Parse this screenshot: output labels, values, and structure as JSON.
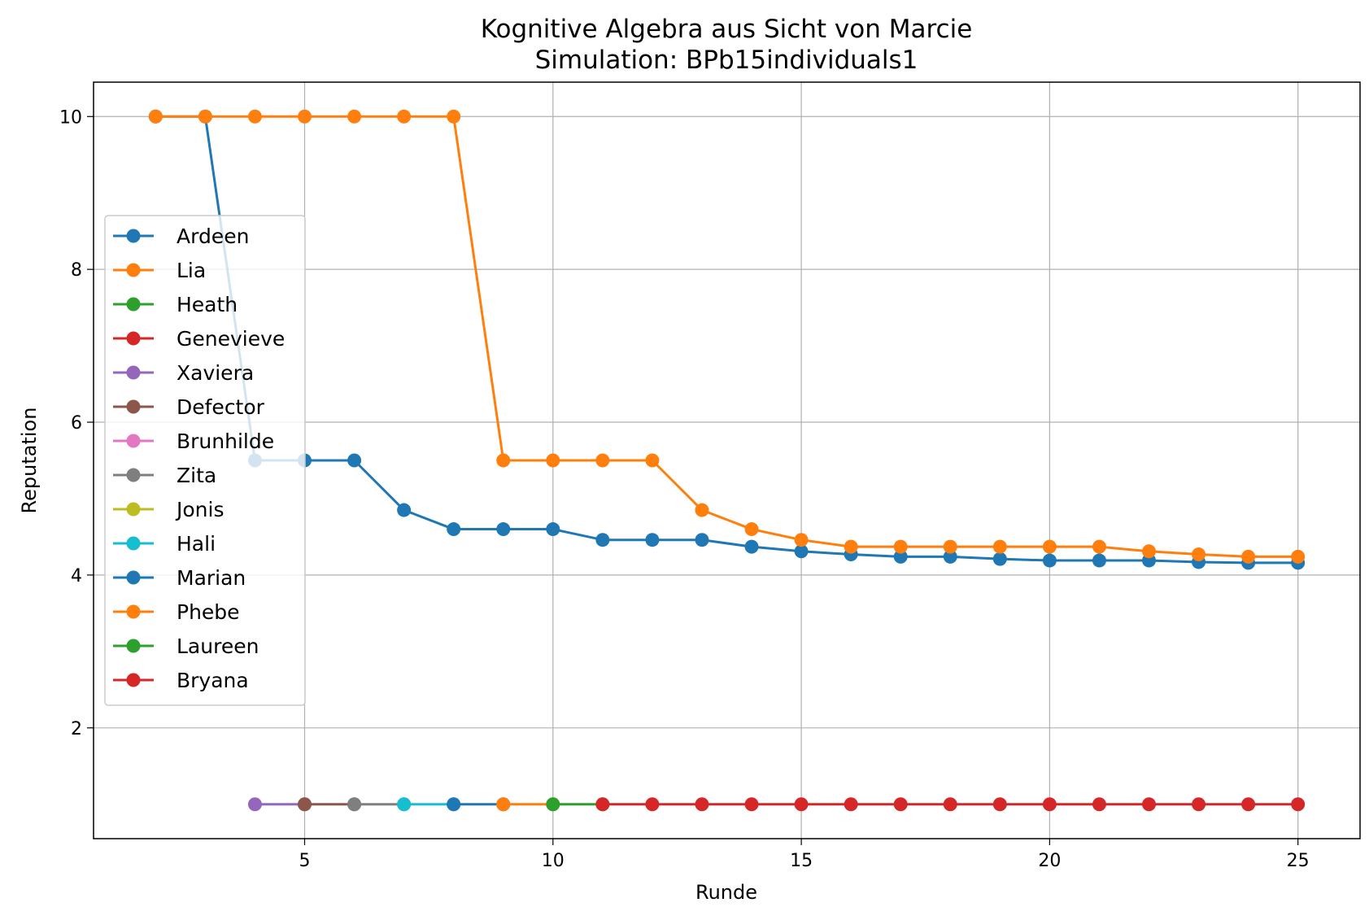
{
  "chart_data": {
    "type": "line",
    "title": "Kognitive Algebra aus Sicht von Marcie",
    "subtitle": "Simulation: BPb15individuals1",
    "xlabel": "Runde",
    "ylabel": "Reputation",
    "xlim": [
      0.75,
      26.25
    ],
    "ylim": [
      0.55,
      10.45
    ],
    "xticks": [
      5,
      10,
      15,
      20,
      25
    ],
    "yticks": [
      2,
      4,
      6,
      8,
      10
    ],
    "grid": true,
    "legend_position": "center-left",
    "series": [
      {
        "name": "Ardeen",
        "color": "#1f77b4",
        "x": [
          2,
          3,
          4,
          5,
          6,
          7,
          8,
          9,
          10,
          11,
          12,
          13,
          14,
          15,
          16,
          17,
          18,
          19,
          20,
          21,
          22,
          23,
          24,
          25
        ],
        "y": [
          10,
          10,
          5.5,
          5.5,
          5.5,
          4.85,
          4.6,
          4.6,
          4.6,
          4.46,
          4.46,
          4.46,
          4.37,
          4.31,
          4.27,
          4.24,
          4.24,
          4.21,
          4.19,
          4.19,
          4.19,
          4.17,
          4.16,
          4.16
        ]
      },
      {
        "name": "Lia",
        "color": "#ff7f0e",
        "x": [
          2,
          3,
          4,
          5,
          6,
          7,
          8,
          9,
          10,
          11,
          12,
          13,
          14,
          15,
          16,
          17,
          18,
          19,
          20,
          21,
          22,
          23,
          24,
          25
        ],
        "y": [
          10,
          10,
          10,
          10,
          10,
          10,
          10,
          5.5,
          5.5,
          5.5,
          5.5,
          4.85,
          4.6,
          4.46,
          4.37,
          4.37,
          4.37,
          4.37,
          4.37,
          4.37,
          4.31,
          4.27,
          4.24,
          4.24
        ]
      },
      {
        "name": "Heath",
        "color": "#2ca02c",
        "x": [],
        "y": []
      },
      {
        "name": "Genevieve",
        "color": "#d62728",
        "x": [],
        "y": []
      },
      {
        "name": "Xaviera",
        "color": "#9467bd",
        "x": [
          4,
          5
        ],
        "y": [
          1,
          1
        ]
      },
      {
        "name": "Defector",
        "color": "#8c564b",
        "x": [
          5,
          6
        ],
        "y": [
          1,
          1
        ]
      },
      {
        "name": "Brunhilde",
        "color": "#e377c2",
        "x": [],
        "y": []
      },
      {
        "name": "Zita",
        "color": "#7f7f7f",
        "x": [
          6,
          7
        ],
        "y": [
          1,
          1
        ]
      },
      {
        "name": "Jonis",
        "color": "#bcbd22",
        "x": [],
        "y": []
      },
      {
        "name": "Hali",
        "color": "#17becf",
        "x": [
          7,
          8
        ],
        "y": [
          1,
          1
        ]
      },
      {
        "name": "Marian",
        "color": "#1f77b4",
        "x": [
          8,
          9
        ],
        "y": [
          1,
          1
        ]
      },
      {
        "name": "Phebe",
        "color": "#ff7f0e",
        "x": [
          9,
          10
        ],
        "y": [
          1,
          1
        ]
      },
      {
        "name": "Laureen",
        "color": "#2ca02c",
        "x": [
          10,
          11
        ],
        "y": [
          1,
          1
        ]
      },
      {
        "name": "Bryana",
        "color": "#d62728",
        "x": [
          11,
          12,
          13,
          14,
          15,
          16,
          17,
          18,
          19,
          20,
          21,
          22,
          23,
          24,
          25
        ],
        "y": [
          1,
          1,
          1,
          1,
          1,
          1,
          1,
          1,
          1,
          1,
          1,
          1,
          1,
          1,
          1
        ]
      }
    ]
  }
}
